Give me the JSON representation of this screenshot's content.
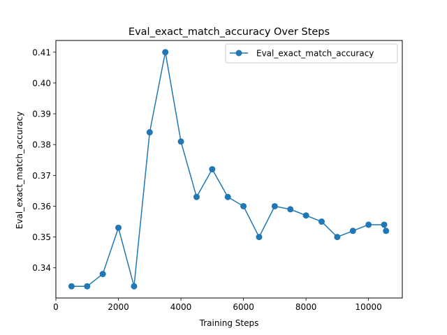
{
  "chart_data": {
    "type": "line",
    "title": "Eval_exact_match_accuracy Over Steps",
    "xlabel": "Training Steps",
    "ylabel": "Eval_exact_match_accuracy",
    "xlim": [
      0,
      11080
    ],
    "ylim": [
      0.3302,
      0.4138
    ],
    "xticks": [
      0,
      2000,
      4000,
      6000,
      8000,
      10000
    ],
    "xtick_labels": [
      "0",
      "2000",
      "4000",
      "6000",
      "8000",
      "10000"
    ],
    "yticks": [
      0.34,
      0.35,
      0.36,
      0.37,
      0.38,
      0.39,
      0.4,
      0.41
    ],
    "ytick_labels": [
      "0.34",
      "0.35",
      "0.36",
      "0.37",
      "0.38",
      "0.39",
      "0.40",
      "0.41"
    ],
    "grid": false,
    "legend_position": "top-right",
    "series": [
      {
        "name": "Eval_exact_match_accuracy",
        "color": "#1f77b4",
        "marker": "circle",
        "x": [
          500,
          1000,
          1500,
          2000,
          2500,
          3000,
          3500,
          4000,
          4500,
          5000,
          5500,
          6000,
          6500,
          7000,
          7500,
          8000,
          8500,
          9000,
          9500,
          10000,
          10500,
          10560
        ],
        "y": [
          0.334,
          0.334,
          0.338,
          0.353,
          0.334,
          0.384,
          0.41,
          0.381,
          0.363,
          0.372,
          0.363,
          0.36,
          0.35,
          0.36,
          0.359,
          0.357,
          0.355,
          0.35,
          0.352,
          0.354,
          0.354,
          0.352
        ]
      }
    ]
  }
}
